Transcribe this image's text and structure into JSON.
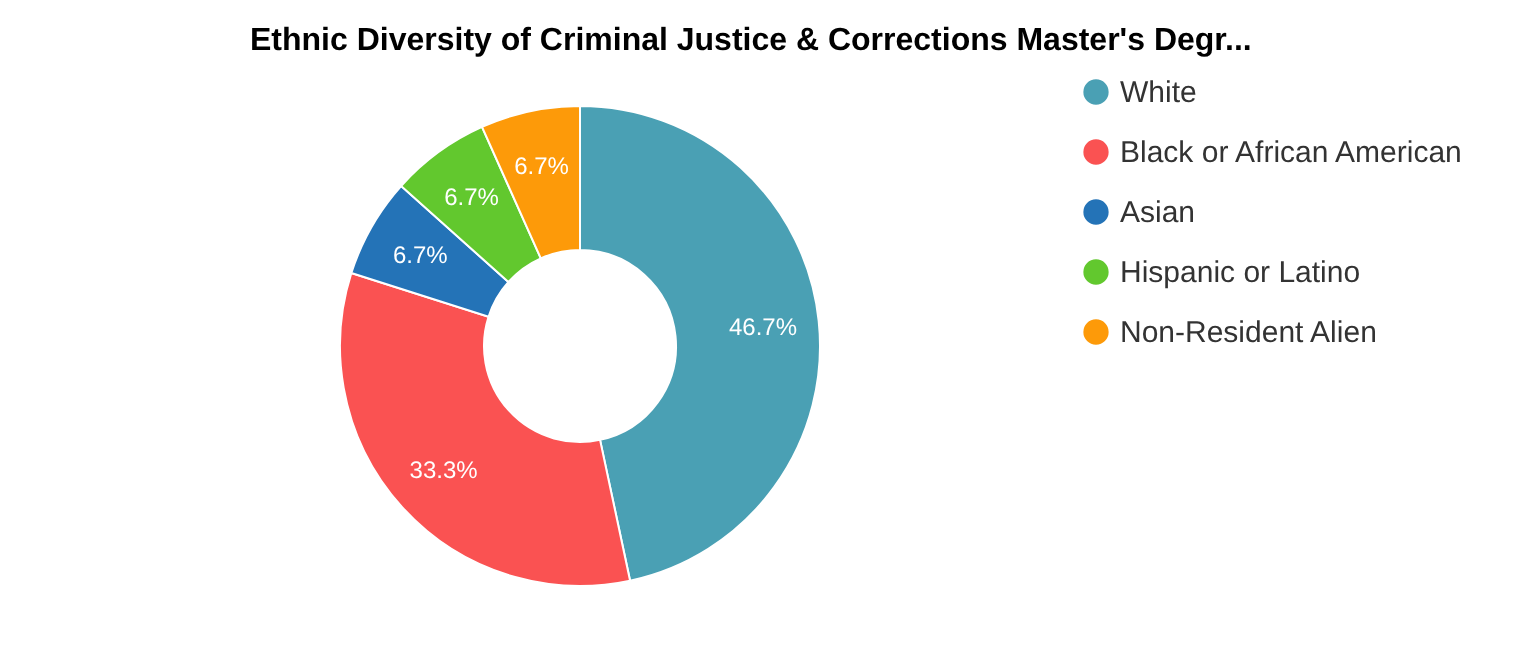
{
  "chart_data": {
    "type": "donut",
    "title": "Ethnic Diversity of Criminal Justice & Corrections Master's Degr...",
    "categories": [
      "White",
      "Black or African American",
      "Asian",
      "Hispanic or Latino",
      "Non-Resident Alien"
    ],
    "values": [
      46.7,
      33.3,
      6.7,
      6.7,
      6.7
    ],
    "value_labels": [
      "46.7%",
      "33.3%",
      "6.7%",
      "6.7%",
      "6.7%"
    ],
    "colors": [
      "#4aa0b4",
      "#fa5252",
      "#2473b7",
      "#62c82e",
      "#fd9a09"
    ],
    "legend": "right"
  }
}
